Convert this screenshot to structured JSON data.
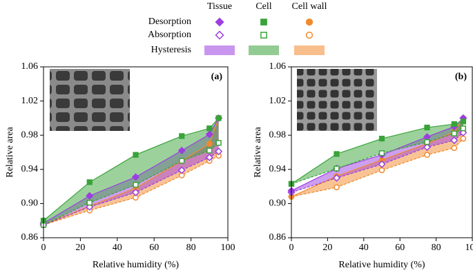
{
  "legend": {
    "columns": [
      "Tissue",
      "Cell",
      "Cell wall"
    ],
    "rows": [
      "Desorption",
      "Absorption",
      "Hysteresis"
    ],
    "colors": [
      "#9b3fe0",
      "#39a339",
      "#f2892c"
    ],
    "markers": [
      "diamond",
      "square",
      "circle"
    ]
  },
  "chart_data": [
    {
      "type": "line",
      "panel_label": "(a)",
      "x_label": "Relative humidity (%)",
      "y_label": "Relative area",
      "x": [
        0,
        25,
        50,
        75,
        90,
        95
      ],
      "xlim": [
        0,
        100
      ],
      "xticks": [
        0,
        20,
        40,
        60,
        80,
        100
      ],
      "ylim": [
        0.86,
        1.06
      ],
      "yticks": [
        0.86,
        {
          "value": 0.9,
          "label": "0.90"
        },
        0.94,
        0.98,
        1.02,
        1.06
      ],
      "series": [
        {
          "desorption": [
            0.877,
            0.909,
            0.931,
            0.962,
            0.981,
            1.0
          ],
          "absorption": [
            0.875,
            0.896,
            0.913,
            0.939,
            0.954,
            0.961
          ]
        },
        {
          "desorption": [
            0.88,
            0.925,
            0.957,
            0.979,
            0.988,
            1.0
          ],
          "absorption": [
            0.875,
            0.901,
            0.922,
            0.95,
            0.962,
            0.971
          ]
        },
        {
          "desorption": [
            0.875,
            0.897,
            0.918,
            0.95,
            0.97,
            1.0
          ],
          "absorption": [
            0.875,
            0.892,
            0.907,
            0.933,
            0.95,
            0.956
          ]
        }
      ]
    },
    {
      "type": "line",
      "panel_label": "(b)",
      "x_label": "Relative humidity (%)",
      "y_label": "Relative area",
      "x": [
        0,
        25,
        50,
        75,
        90,
        95
      ],
      "xlim": [
        0,
        100
      ],
      "xticks": [
        0,
        20,
        40,
        60,
        80,
        100
      ],
      "ylim": [
        0.86,
        1.06
      ],
      "yticks": [
        0.86,
        {
          "value": 0.9,
          "label": "0.90"
        },
        0.94,
        0.98,
        1.02,
        1.06
      ],
      "series": [
        {
          "desorption": [
            0.915,
            0.941,
            0.957,
            0.978,
            0.99,
            1.0
          ],
          "absorption": [
            0.913,
            0.93,
            0.946,
            0.966,
            0.974,
            0.983
          ]
        },
        {
          "desorption": [
            0.923,
            0.958,
            0.976,
            0.989,
            0.993,
            0.996
          ],
          "absorption": [
            0.923,
            0.941,
            0.959,
            0.972,
            0.982,
            0.988
          ]
        },
        {
          "desorption": [
            0.908,
            0.932,
            0.951,
            0.97,
            0.984,
            1.0
          ],
          "absorption": [
            0.908,
            0.919,
            0.939,
            0.957,
            0.965,
            0.976
          ]
        }
      ]
    }
  ]
}
